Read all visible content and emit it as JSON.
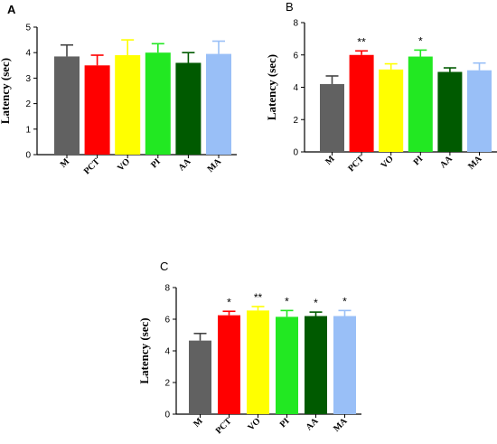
{
  "figure": {
    "colors": {
      "M": "#616161",
      "PCT": "#ff0000",
      "VO": "#ffff00",
      "PI": "#22e822",
      "AA": "#005a00",
      "MA": "#99bff7"
    }
  },
  "chart_data": [
    {
      "panel_label": "A",
      "type": "bar",
      "ylabel": "Latency (sec)",
      "ylim": [
        0,
        5
      ],
      "yticks": [
        0,
        1,
        2,
        3,
        4,
        5
      ],
      "categories": [
        "M",
        "PCT",
        "VO",
        "PI",
        "AA",
        "MA"
      ],
      "values": [
        3.85,
        3.5,
        3.9,
        4.0,
        3.6,
        3.95
      ],
      "errors": [
        0.45,
        0.4,
        0.6,
        0.35,
        0.4,
        0.5
      ],
      "significance": [
        "",
        "",
        "",
        "",
        "",
        ""
      ]
    },
    {
      "panel_label": "B",
      "type": "bar",
      "ylabel": "Latency (sec)",
      "ylim": [
        0,
        8
      ],
      "yticks": [
        0,
        2,
        4,
        6,
        8
      ],
      "categories": [
        "M",
        "PCT",
        "VO",
        "PI",
        "AA",
        "MA"
      ],
      "values": [
        4.2,
        6.0,
        5.1,
        5.9,
        4.95,
        5.05
      ],
      "errors": [
        0.5,
        0.25,
        0.35,
        0.4,
        0.25,
        0.45
      ],
      "significance": [
        "",
        "**",
        "",
        "*",
        "",
        ""
      ]
    },
    {
      "panel_label": "C",
      "type": "bar",
      "ylabel": "Latency (sec)",
      "ylim": [
        0,
        8
      ],
      "yticks": [
        0,
        2,
        4,
        6,
        8
      ],
      "categories": [
        "M",
        "PCT",
        "VO",
        "PI",
        "AA",
        "MA"
      ],
      "values": [
        4.65,
        6.25,
        6.55,
        6.15,
        6.2,
        6.2
      ],
      "errors": [
        0.45,
        0.25,
        0.25,
        0.4,
        0.25,
        0.35
      ],
      "significance": [
        "",
        "*",
        "**",
        "*",
        "*",
        "*"
      ]
    }
  ]
}
